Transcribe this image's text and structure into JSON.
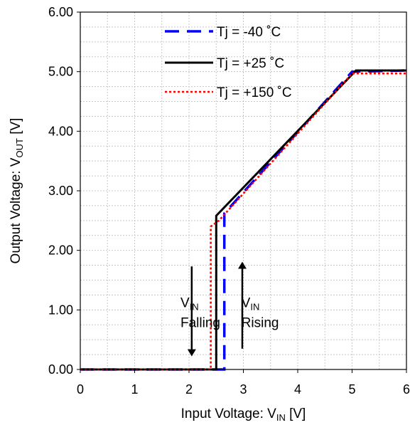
{
  "chart_data": {
    "type": "line",
    "title": "",
    "xlabel": "Input Voltage: V_IN [V]",
    "xlabel_parts": {
      "main": "Input Voltage: V",
      "sub": "IN",
      "unit": " [V]"
    },
    "ylabel": "Output Voltage: V_OUT [V]",
    "ylabel_parts": {
      "main": "Output Voltage: V",
      "sub": "OUT",
      "unit": " [V]"
    },
    "xlim": [
      0,
      6
    ],
    "ylim": [
      0,
      6
    ],
    "x_ticks": [
      "0",
      "1",
      "2",
      "3",
      "4",
      "5",
      "6"
    ],
    "y_ticks": [
      "0.00",
      "1.00",
      "2.00",
      "3.00",
      "4.00",
      "5.00",
      "6.00"
    ],
    "grid": true,
    "legend_position": "top-center",
    "series": [
      {
        "name": "Tj = -40 ˚C",
        "color": "#0000ff",
        "dash": "dashed",
        "points": [
          [
            0,
            0
          ],
          [
            2.65,
            0
          ],
          [
            2.65,
            2.62
          ],
          [
            5.0,
            5.0
          ],
          [
            6.0,
            5.02
          ]
        ]
      },
      {
        "name": "Tj = +25 ˚C",
        "color": "#000000",
        "dash": "solid",
        "points": [
          [
            0,
            0
          ],
          [
            2.5,
            0
          ],
          [
            2.5,
            2.58
          ],
          [
            5.07,
            5.02
          ],
          [
            6.0,
            5.02
          ]
        ]
      },
      {
        "name": "Tj = +150 ˚C",
        "color": "#ff0000",
        "dash": "dotted",
        "points": [
          [
            0,
            0
          ],
          [
            2.4,
            0
          ],
          [
            2.4,
            2.4
          ],
          [
            2.55,
            2.5
          ],
          [
            5.0,
            4.97
          ],
          [
            6.0,
            4.97
          ]
        ]
      }
    ],
    "annotations": [
      {
        "name": "vin-falling",
        "line1": "V",
        "line1_sub": "IN",
        "line2": "Falling",
        "x": 2.0,
        "y": 1.0,
        "arrow": "down",
        "arrow_x": 2.05,
        "arrow_from": 1.73,
        "arrow_to": 0.28
      },
      {
        "name": "vin-rising",
        "line1": "V",
        "line1_sub": "IN",
        "line2": "Rising",
        "x": 3.12,
        "y": 1.0,
        "arrow": "up",
        "arrow_x": 2.98,
        "arrow_from": 0.35,
        "arrow_to": 1.75
      }
    ]
  }
}
